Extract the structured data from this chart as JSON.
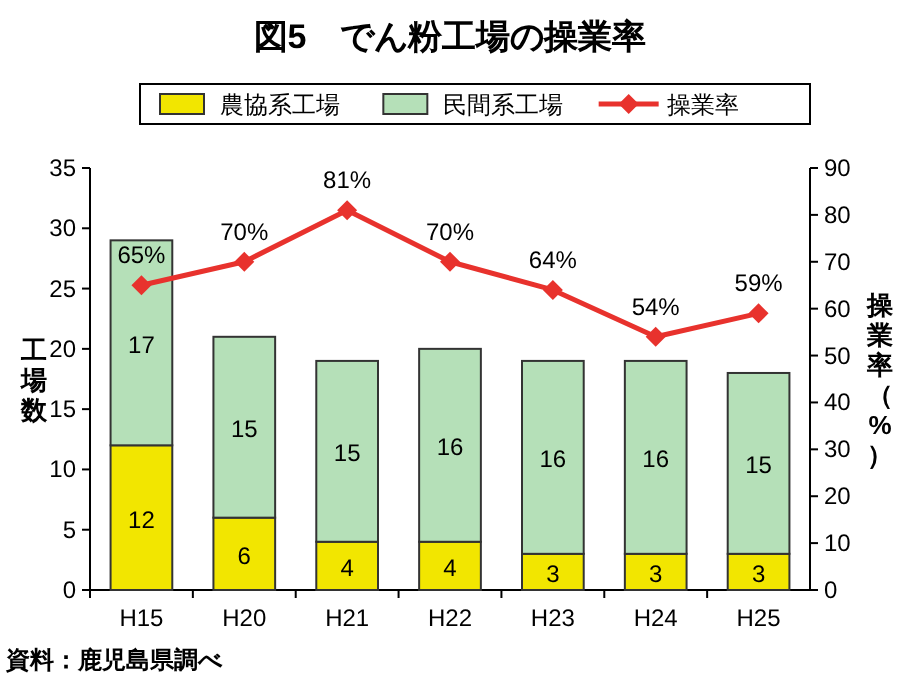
{
  "chart_data": {
    "type": "bar",
    "title": "図5　でん粉工場の操業率",
    "categories": [
      "H15",
      "H20",
      "H21",
      "H22",
      "H23",
      "H24",
      "H25"
    ],
    "stacked": true,
    "legend": "top",
    "ylabel": "工場数",
    "y2label": "操業率（%）",
    "ylim": [
      0,
      35
    ],
    "yticks": [
      0,
      5,
      10,
      15,
      20,
      25,
      30,
      35
    ],
    "y2lim": [
      0,
      90
    ],
    "y2ticks": [
      0,
      10,
      20,
      30,
      40,
      50,
      60,
      70,
      80,
      90
    ],
    "annotations": [
      "資料：鹿児島県調べ"
    ],
    "series": [
      {
        "name": "農協系工場",
        "color": "#f2e600",
        "values": [
          12,
          6,
          4,
          4,
          3,
          3,
          3
        ],
        "value_labels": [
          "12",
          "6",
          "4",
          "4",
          "3",
          "3",
          "3"
        ]
      },
      {
        "name": "民間系工場",
        "color": "#b5e0b8",
        "values": [
          17,
          15,
          15,
          16,
          16,
          16,
          15
        ],
        "value_labels": [
          "17",
          "15",
          "15",
          "16",
          "16",
          "16",
          "15"
        ]
      },
      {
        "name": "操業率",
        "type": "line",
        "axis": "y2",
        "color": "#e8322d",
        "marker": "diamond",
        "values": [
          65,
          70,
          81,
          70,
          64,
          54,
          59
        ],
        "value_labels": [
          "65%",
          "70%",
          "81%",
          "70%",
          "64%",
          "54%",
          "59%"
        ]
      }
    ]
  }
}
